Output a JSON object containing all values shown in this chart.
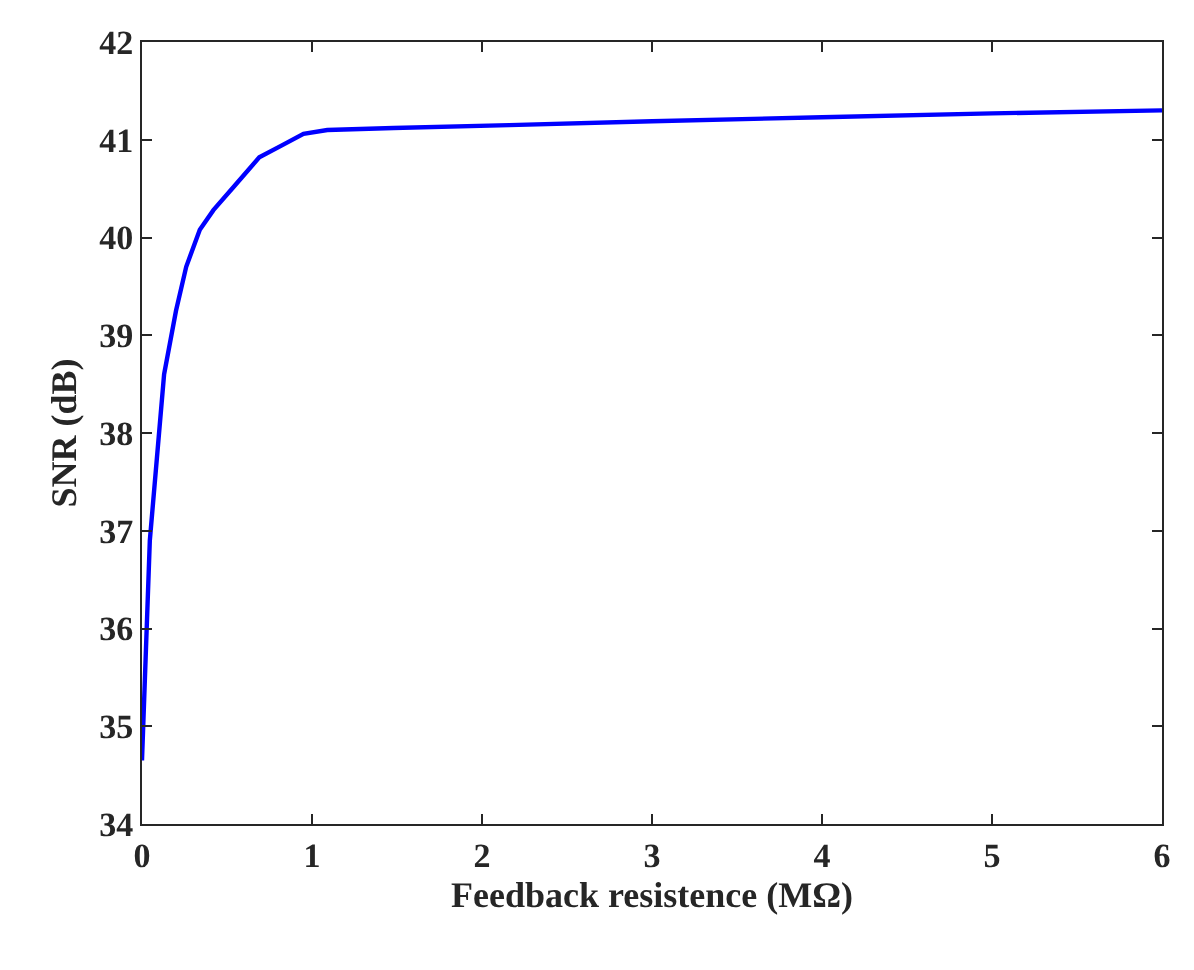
{
  "chart_data": {
    "type": "line",
    "xlabel": "Feedback resistence (MΩ)",
    "ylabel": "SNR (dB)",
    "xlim": [
      0,
      6
    ],
    "ylim": [
      34,
      42
    ],
    "xticks": [
      0,
      1,
      2,
      3,
      4,
      5,
      6
    ],
    "yticks": [
      34,
      35,
      36,
      37,
      38,
      39,
      40,
      41,
      42
    ],
    "series": [
      {
        "color": "#0000ff",
        "x": [
          0,
          0.046,
          0.13,
          0.2,
          0.26,
          0.34,
          0.42,
          0.55,
          0.69,
          0.82,
          0.95,
          1.09,
          1.48,
          2.16,
          3,
          4,
          5,
          6
        ],
        "values": [
          34.65,
          36.9,
          38.6,
          39.25,
          39.7,
          40.08,
          40.28,
          40.54,
          40.82,
          40.94,
          41.06,
          41.1,
          41.12,
          41.15,
          41.19,
          41.23,
          41.27,
          41.3
        ]
      }
    ]
  }
}
